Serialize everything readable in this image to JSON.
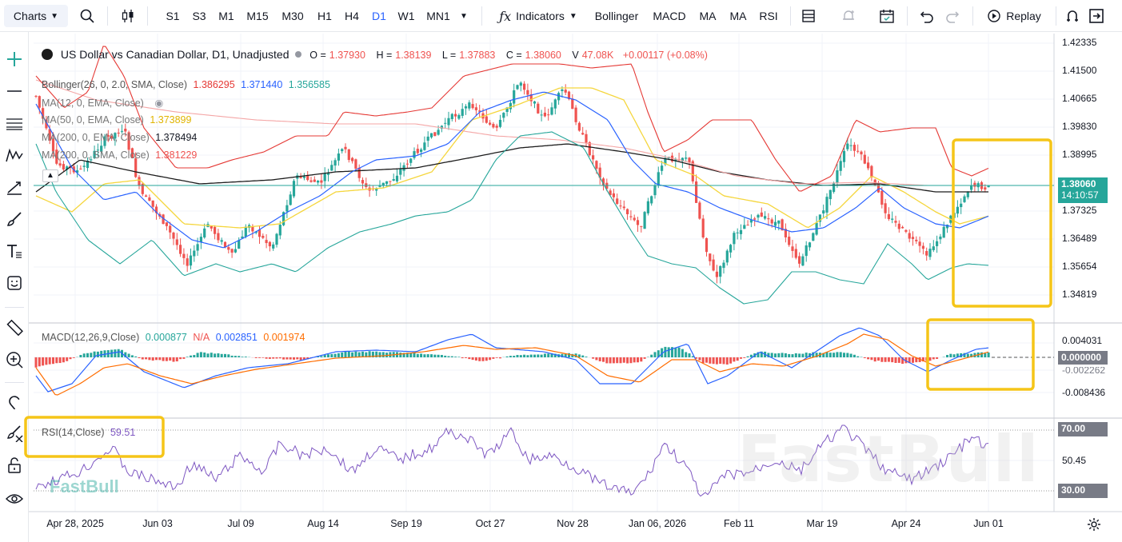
{
  "toolbar": {
    "charts_label": "Charts",
    "timeframes": [
      "S1",
      "S3",
      "M1",
      "M15",
      "M30",
      "H1",
      "H4",
      "D1",
      "W1",
      "MN1"
    ],
    "active_timeframe": "D1",
    "indicators_label": "Indicators",
    "quick_indicators": [
      "Bollinger",
      "MACD",
      "MA",
      "MA",
      "RSI"
    ],
    "replay_label": "Replay"
  },
  "symbol_legend": {
    "title": "US Dollar vs Canadian Dollar, D1, Unadjusted",
    "o_label": "O =",
    "o_value": "1.37930",
    "h_label": "H =",
    "h_value": "1.38139",
    "l_label": "L =",
    "l_value": "1.37883",
    "c_label": "C =",
    "c_value": "1.38060",
    "v_label": "V",
    "v_value": "47.08K",
    "change": "+0.00117 (+0.08%)"
  },
  "indicators": {
    "bollinger": {
      "label": "Bollinger(26, 0, 2.0, SMA, Close)",
      "v1": "1.386295",
      "v2": "1.371440",
      "v3": "1.356585"
    },
    "ma12": {
      "label": "MA(12, 0, EMA, Close)"
    },
    "ma50": {
      "label": "MA(50, 0, EMA, Close)",
      "value": "1.373899"
    },
    "ma200e": {
      "label": "MA(200, 0, EMA, Close)",
      "value": "1.378494"
    },
    "ma200s": {
      "label": "MA(200, 0, SMA, Close)",
      "value": "1.381229"
    },
    "macd": {
      "label": "MACD(12,26,9,Close)",
      "v1": "0.000877",
      "v2": "N/A",
      "v3": "0.002851",
      "v4": "0.001974"
    },
    "rsi": {
      "label": "RSI(14,Close)",
      "value": "59.51"
    }
  },
  "price_axis": [
    "1.42335",
    "1.41500",
    "1.40665",
    "1.39830",
    "1.38995",
    "1.37325",
    "1.36489",
    "1.35654",
    "1.34819"
  ],
  "current_price": "1.38060",
  "countdown": "14:10:57",
  "macd_axis": [
    "0.004031",
    "0.000000",
    "-0.002262",
    "-0.008436"
  ],
  "rsi_axis": [
    "70.00",
    "50.45",
    "30.00"
  ],
  "date_axis": [
    "Apr 28, 2025",
    "Jun 03",
    "Jul 09",
    "Aug 14",
    "Sep 19",
    "Oct 27",
    "Nov 28",
    "Jan 06, 2026",
    "Feb 11",
    "Mar 19",
    "Apr 24",
    "Jun 01"
  ],
  "watermark": "FastBull",
  "colors": {
    "up": "#26a69a",
    "down": "#ef5350",
    "accent": "#2962ff",
    "bb_upper": "#e53935",
    "bb_mid": "#2962ff",
    "bb_lower": "#26a69a",
    "ma50": "#f5d63d",
    "ma200e": "#1c1c1c",
    "ma200s": "#f4a6a6",
    "highlight": "#f5c518",
    "rsi": "#7e57c2"
  }
}
